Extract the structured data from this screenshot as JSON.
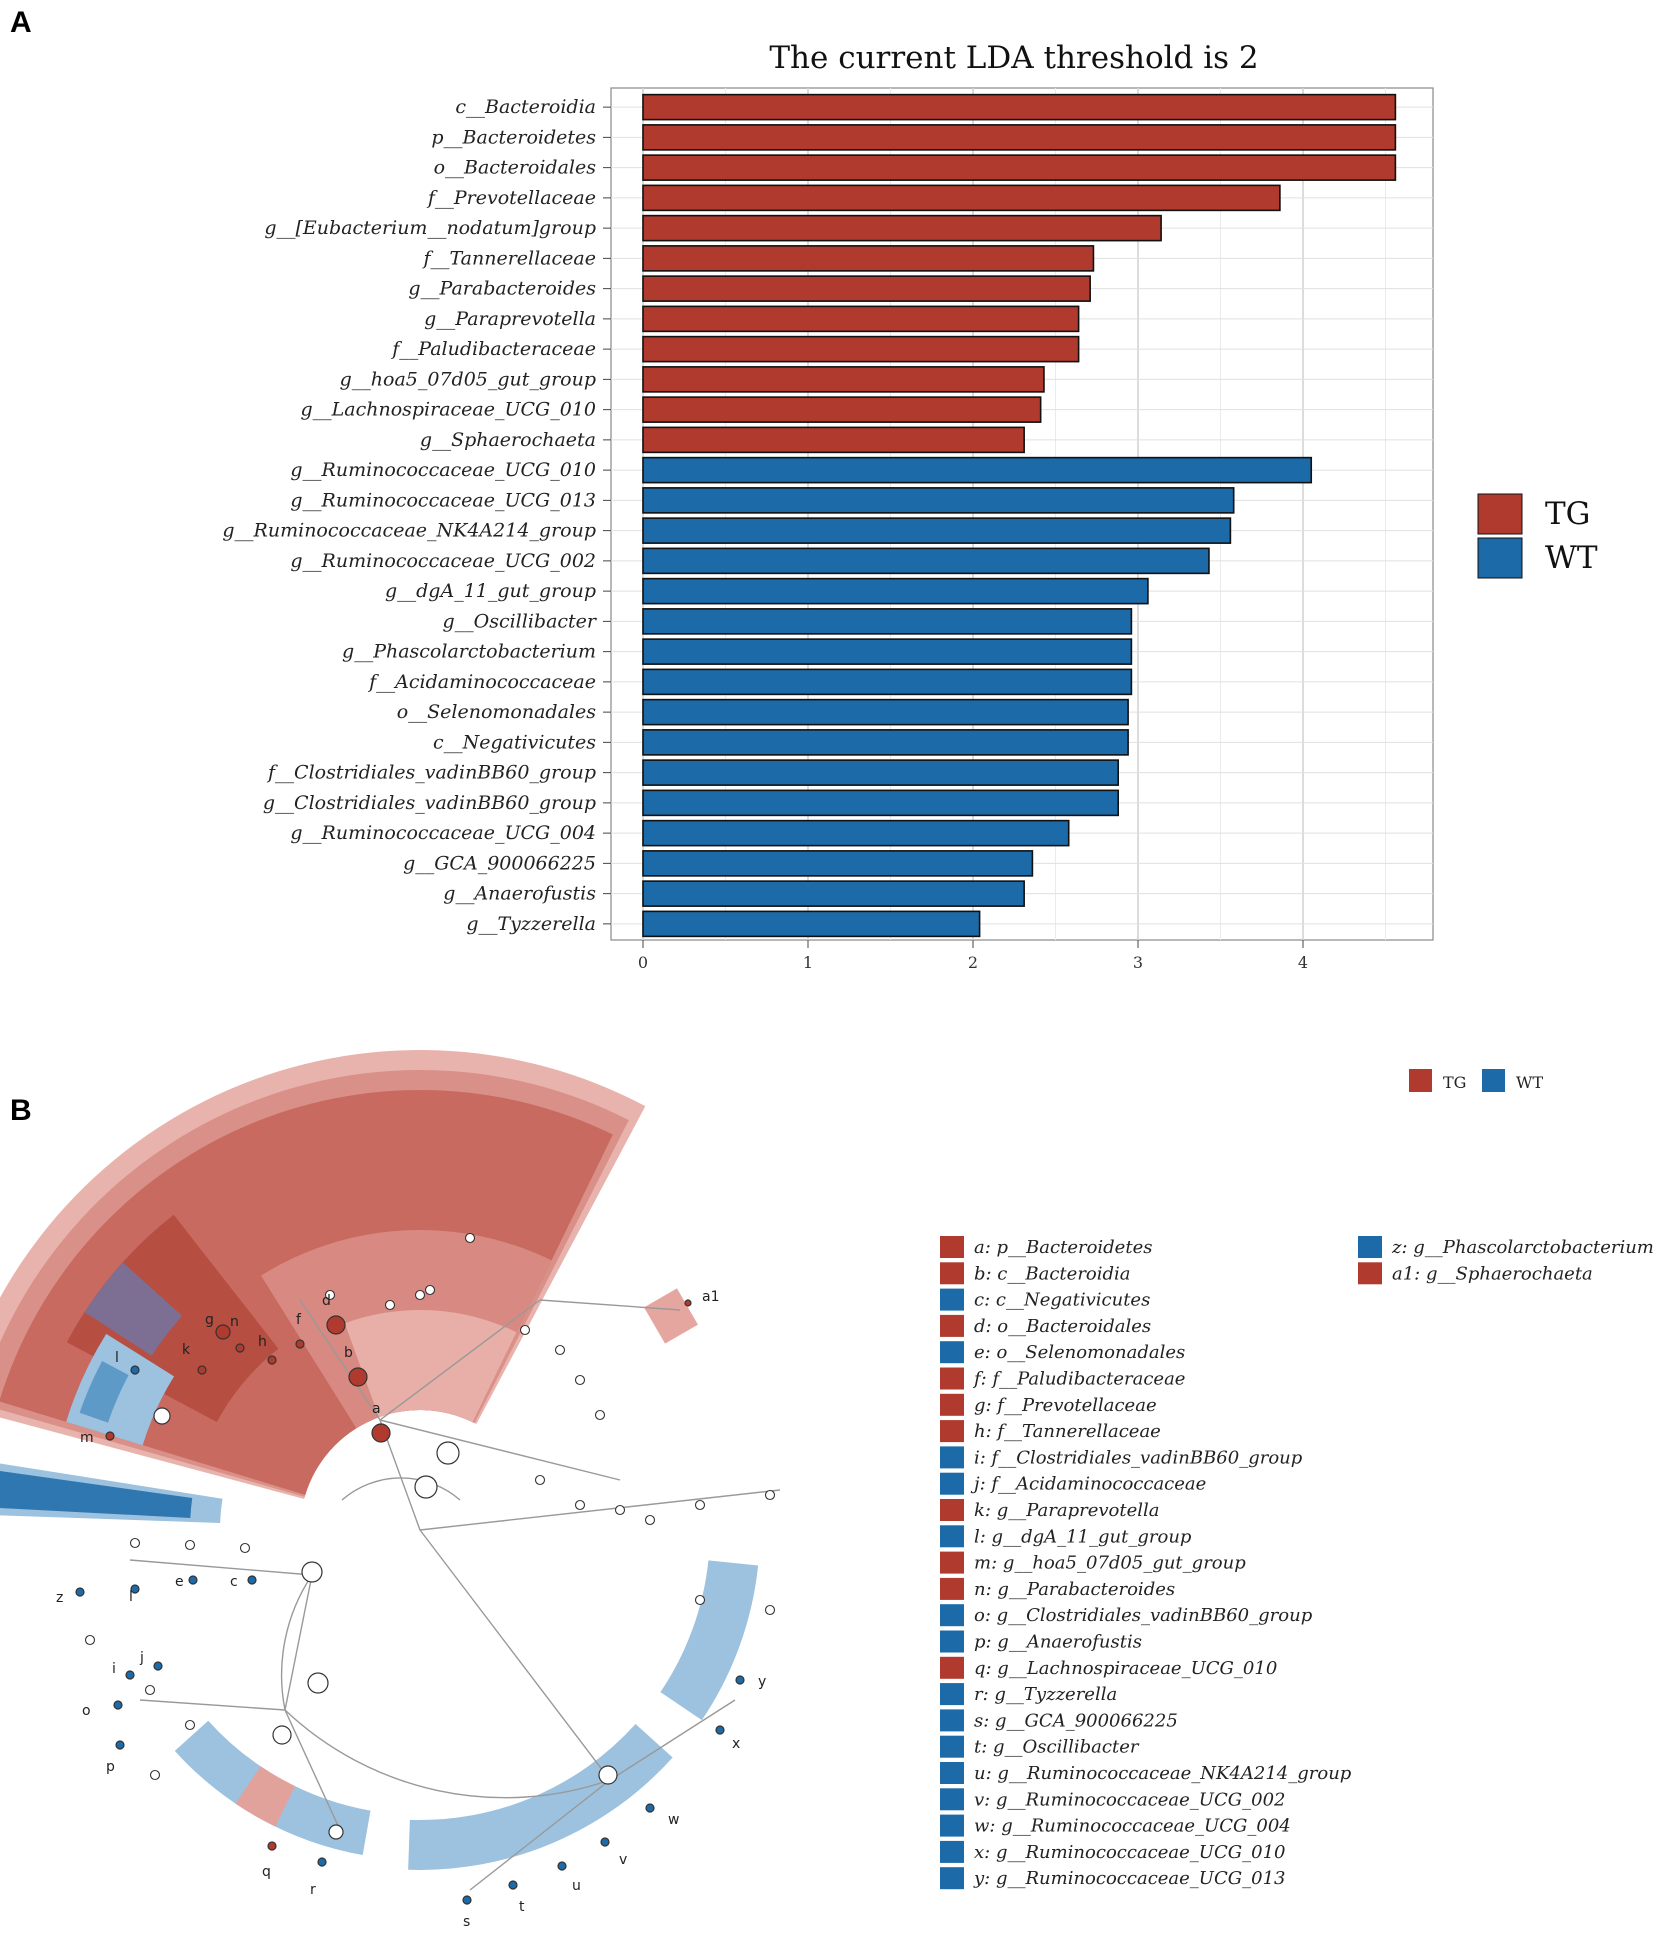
{
  "panel_a_label": "A",
  "panel_b_label": "B",
  "colors": {
    "TG": "#b03a2e",
    "WT": "#1c6aa8"
  },
  "chart_data": [
    {
      "type": "bar",
      "title": "The current LDA threshold is 2",
      "categories": [
        "c__Bacteroidia",
        "p__Bacteroidetes",
        "o__Bacteroidales",
        "f__Prevotellaceae",
        "g__[Eubacterium__nodatum]group",
        "f__Tannerellaceae",
        "g__Parabacteroides",
        "g__Paraprevotella",
        "f__Paludibacteraceae",
        "g__hoa5_07d05_gut_group",
        "g__Lachnospiraceae_UCG_010",
        "g__Sphaerochaeta",
        "g__Ruminococcaceae_UCG_010",
        "g__Ruminococcaceae_UCG_013",
        "g__Ruminococcaceae_NK4A214_group",
        "g__Ruminococcaceae_UCG_002",
        "g__dgA_11_gut_group",
        "g__Oscillibacter",
        "g__Phascolarctobacterium",
        "f__Acidaminococcaceae",
        "o__Selenomonadales",
        "c__Negativicutes",
        "f__Clostridiales_vadinBB60_group",
        "g__Clostridiales_vadinBB60_group",
        "g__Ruminococcaceae_UCG_004",
        "g__GCA_900066225",
        "g__Anaerofustis",
        "g__Tyzzerella"
      ],
      "values": [
        4.56,
        4.56,
        4.56,
        3.86,
        3.14,
        2.73,
        2.71,
        2.64,
        2.64,
        2.43,
        2.41,
        2.31,
        4.05,
        3.58,
        3.56,
        3.43,
        3.06,
        2.96,
        2.96,
        2.96,
        2.94,
        2.94,
        2.88,
        2.88,
        2.58,
        2.36,
        2.31,
        2.04
      ],
      "groups": [
        "TG",
        "TG",
        "TG",
        "TG",
        "TG",
        "TG",
        "TG",
        "TG",
        "TG",
        "TG",
        "TG",
        "TG",
        "WT",
        "WT",
        "WT",
        "WT",
        "WT",
        "WT",
        "WT",
        "WT",
        "WT",
        "WT",
        "WT",
        "WT",
        "WT",
        "WT",
        "WT",
        "WT"
      ],
      "xticks": [
        "0",
        "1",
        "2",
        "3",
        "4"
      ],
      "xlim": [
        -0.2,
        4.8
      ],
      "grid": true,
      "legend": {
        "position": "right",
        "entries": [
          "TG",
          "WT"
        ]
      }
    },
    {
      "type": "cladogram",
      "legend": {
        "position": "top-right",
        "entries": [
          "TG",
          "WT"
        ]
      },
      "key": [
        {
          "id": "a",
          "text": "a: p__Bacteroidetes",
          "group": "TG"
        },
        {
          "id": "b",
          "text": "b: c__Bacteroidia",
          "group": "TG"
        },
        {
          "id": "c",
          "text": "c: c__Negativicutes",
          "group": "WT"
        },
        {
          "id": "d",
          "text": "d: o__Bacteroidales",
          "group": "TG"
        },
        {
          "id": "e",
          "text": "e: o__Selenomonadales",
          "group": "WT"
        },
        {
          "id": "f",
          "text": "f: f__Paludibacteraceae",
          "group": "TG"
        },
        {
          "id": "g",
          "text": "g: f__Prevotellaceae",
          "group": "TG"
        },
        {
          "id": "h",
          "text": "h: f__Tannerellaceae",
          "group": "TG"
        },
        {
          "id": "i",
          "text": "i: f__Clostridiales_vadinBB60_group",
          "group": "WT"
        },
        {
          "id": "j",
          "text": "j: f__Acidaminococcaceae",
          "group": "WT"
        },
        {
          "id": "k",
          "text": "k: g__Paraprevotella",
          "group": "TG"
        },
        {
          "id": "l",
          "text": "l: g__dgA_11_gut_group",
          "group": "WT"
        },
        {
          "id": "m",
          "text": "m: g__hoa5_07d05_gut_group",
          "group": "TG"
        },
        {
          "id": "n",
          "text": "n: g__Parabacteroides",
          "group": "TG"
        },
        {
          "id": "o",
          "text": "o: g__Clostridiales_vadinBB60_group",
          "group": "WT"
        },
        {
          "id": "p",
          "text": "p: g__Anaerofustis",
          "group": "WT"
        },
        {
          "id": "q",
          "text": "q: g__Lachnospiraceae_UCG_010",
          "group": "TG"
        },
        {
          "id": "r",
          "text": "r: g__Tyzzerella",
          "group": "WT"
        },
        {
          "id": "s",
          "text": "s: g__GCA_900066225",
          "group": "WT"
        },
        {
          "id": "t",
          "text": "t: g__Oscillibacter",
          "group": "WT"
        },
        {
          "id": "u",
          "text": "u: g__Ruminococcaceae_NK4A214_group",
          "group": "WT"
        },
        {
          "id": "v",
          "text": "v: g__Ruminococcaceae_UCG_002",
          "group": "WT"
        },
        {
          "id": "w",
          "text": "w: g__Ruminococcaceae_UCG_004",
          "group": "WT"
        },
        {
          "id": "x",
          "text": "x: g__Ruminococcaceae_UCG_010",
          "group": "WT"
        },
        {
          "id": "y",
          "text": "y: g__Ruminococcaceae_UCG_013",
          "group": "WT"
        },
        {
          "id": "z",
          "text": "z: g__Phascolarctobacterium",
          "group": "WT"
        },
        {
          "id": "a1",
          "text": "a1: g__Sphaerochaeta",
          "group": "TG"
        }
      ],
      "node_labels": [
        "a",
        "b",
        "c",
        "d",
        "e",
        "f",
        "g",
        "h",
        "i",
        "j",
        "k",
        "l",
        "m",
        "n",
        "o",
        "p",
        "q",
        "r",
        "s",
        "t",
        "u",
        "v",
        "w",
        "x",
        "y",
        "z",
        "a1"
      ]
    }
  ]
}
